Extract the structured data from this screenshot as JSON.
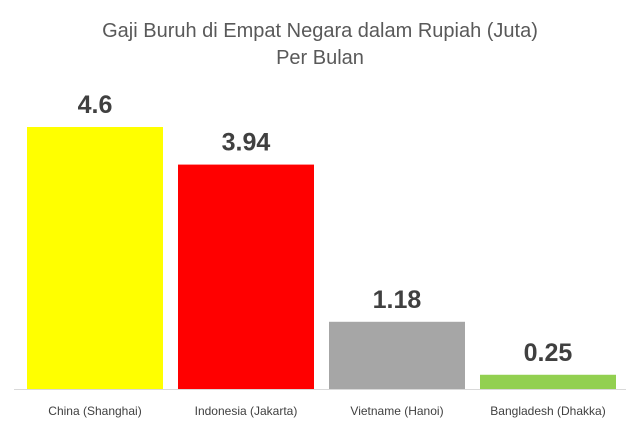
{
  "chart_data": {
    "type": "bar",
    "title": "Gaji Buruh di Empat Negara dalam Rupiah (Juta)",
    "subtitle": "Per Bulan",
    "categories": [
      "China (Shanghai)",
      "Indonesia (Jakarta)",
      "Vietname (Hanoi)",
      "Bangladesh (Dhakka)"
    ],
    "values": [
      4.6,
      3.94,
      1.18,
      0.25
    ],
    "value_labels": [
      "4.6",
      "3.94",
      "1.18",
      "0.25"
    ],
    "colors": [
      "#ffff00",
      "#ff0000",
      "#a6a6a6",
      "#92d050"
    ],
    "ylim": [
      0,
      5
    ],
    "grid": false,
    "legend": "none",
    "xlabel": "",
    "ylabel": ""
  }
}
